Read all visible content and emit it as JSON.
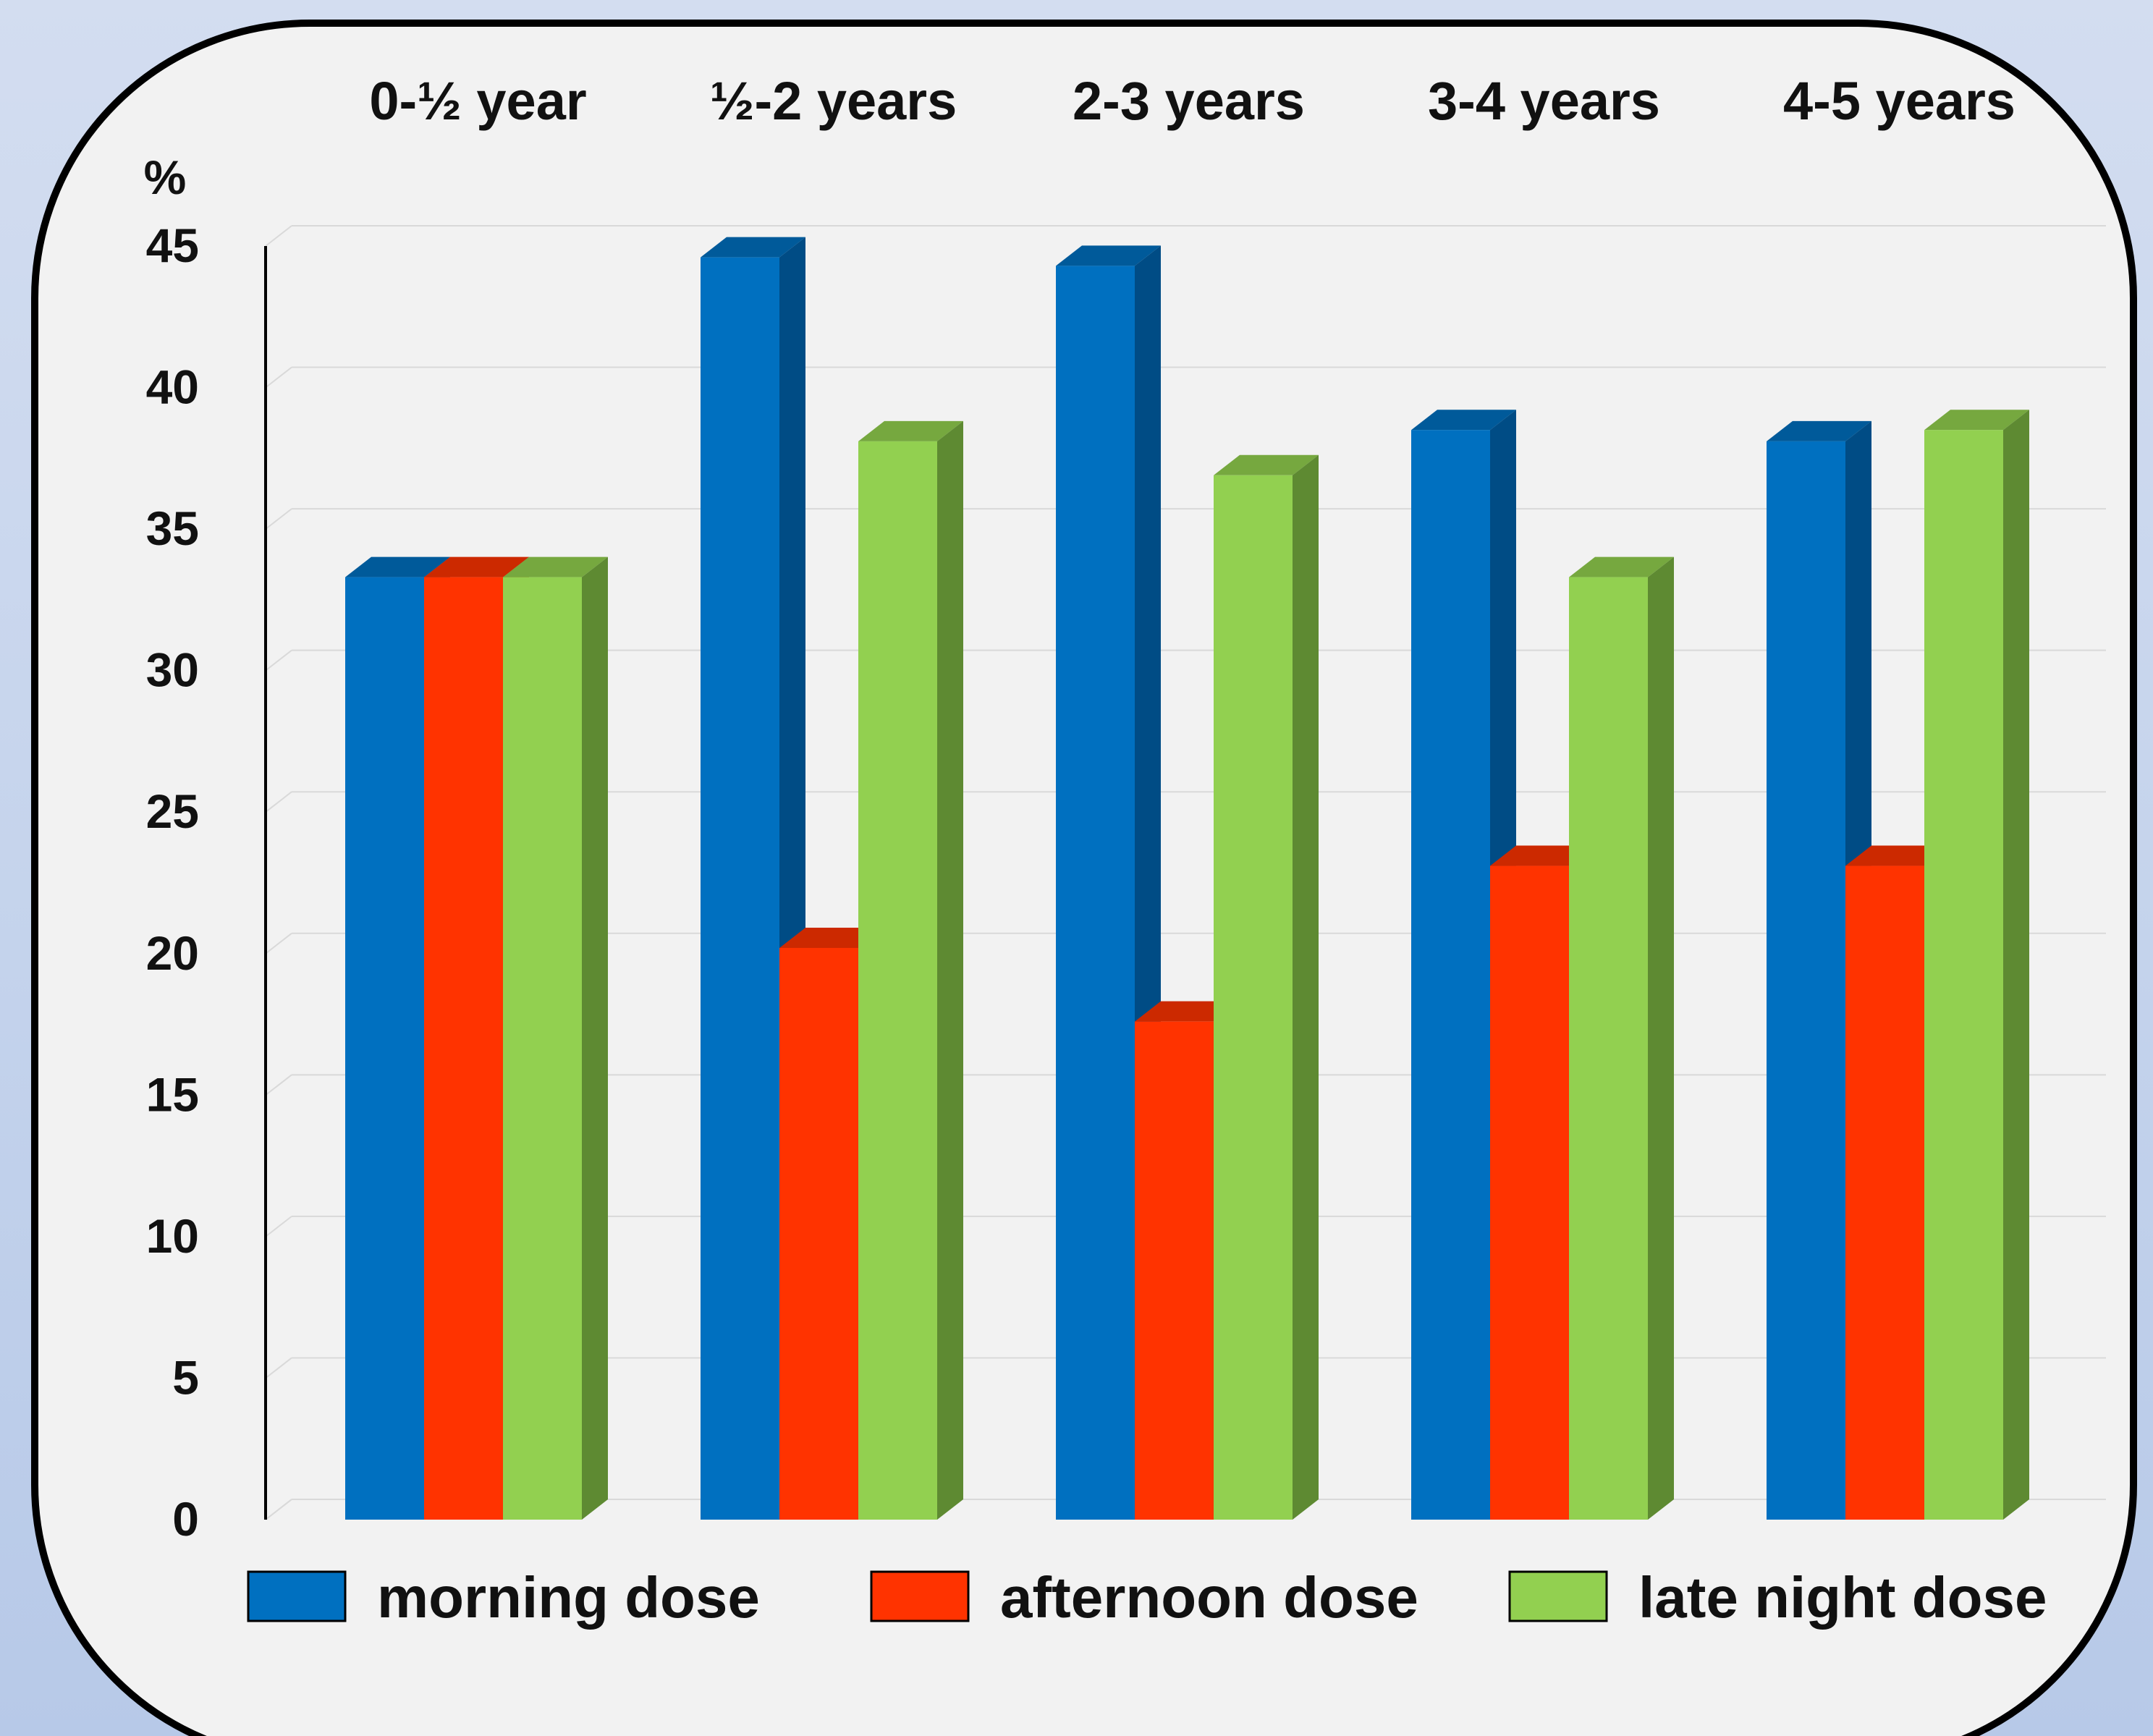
{
  "chart_data": {
    "type": "bar",
    "categories": [
      "0-½ year",
      "½-2 years",
      "2-3 years",
      "3-4 years",
      "4-5 years"
    ],
    "series": [
      {
        "name": "morning dose",
        "values": [
          33.3,
          44.6,
          44.3,
          38.5,
          38.1
        ],
        "color": "#0070c0",
        "side_color": "#004c85",
        "top_color": "#005a9a"
      },
      {
        "name": "afternoon dose",
        "values": [
          33.3,
          20.2,
          17.6,
          23.1,
          23.1
        ],
        "color": "#ff3300",
        "side_color": "#b32400",
        "top_color": "#cc2900"
      },
      {
        "name": "late night dose",
        "values": [
          33.3,
          38.1,
          36.9,
          33.3,
          38.5
        ],
        "color": "#92d050",
        "side_color": "#5e8a32",
        "top_color": "#76a83f"
      }
    ],
    "y_unit_label": "%",
    "y_ticks": [
      "0",
      "5",
      "10",
      "15",
      "20",
      "25",
      "30",
      "35",
      "40",
      "45"
    ],
    "ylim": [
      0,
      45
    ],
    "grid": true,
    "legend_position": "bottom",
    "colors": {
      "panel_bg": "#f2f2f2",
      "panel_border": "#000000",
      "grid": "#d9d9d9"
    }
  }
}
